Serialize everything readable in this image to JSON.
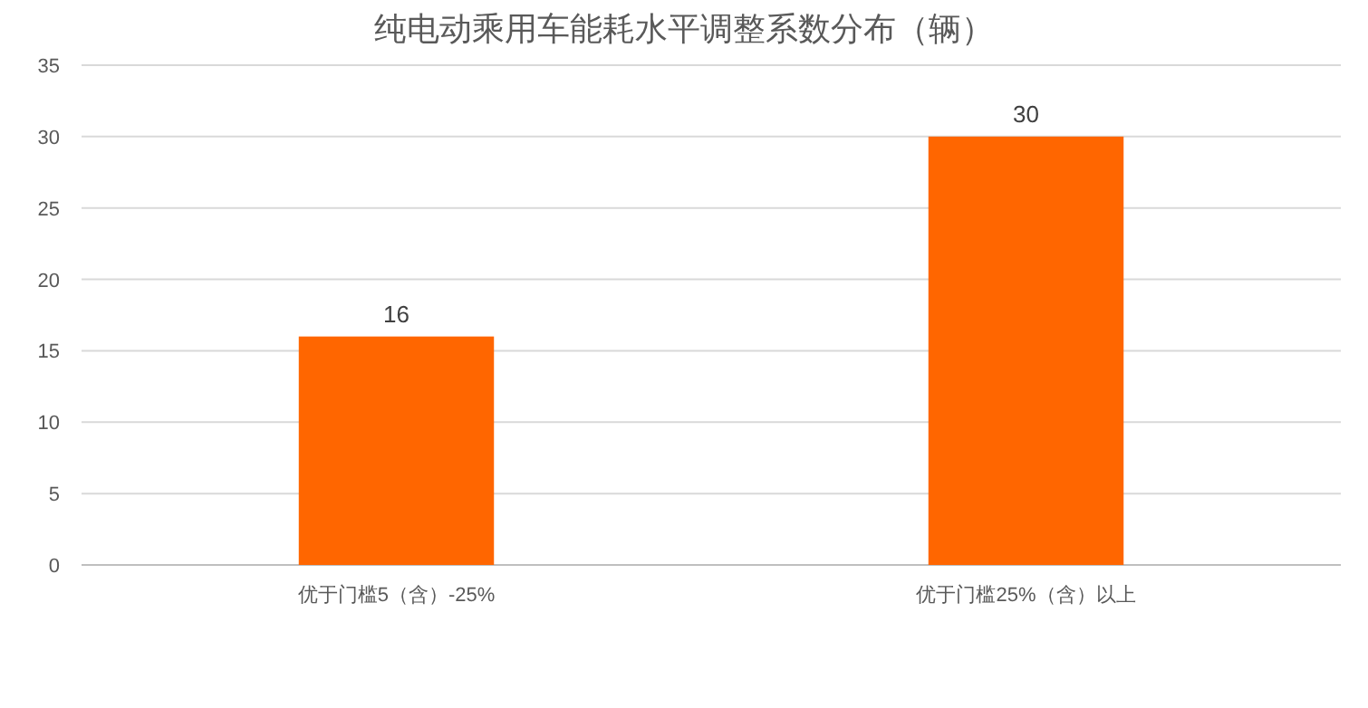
{
  "chart_data": {
    "type": "bar",
    "title": "纯电动乘用车能耗水平调整系数分布（辆）",
    "categories": [
      "优于门槛5（含）-25%",
      "优于门槛25%（含）以上"
    ],
    "values": [
      16,
      30
    ],
    "color": "#ff6600",
    "ylim": [
      0,
      35
    ],
    "yticks": [
      0,
      5,
      10,
      15,
      20,
      25,
      30,
      35
    ],
    "grid": "y",
    "data_labels": true
  }
}
